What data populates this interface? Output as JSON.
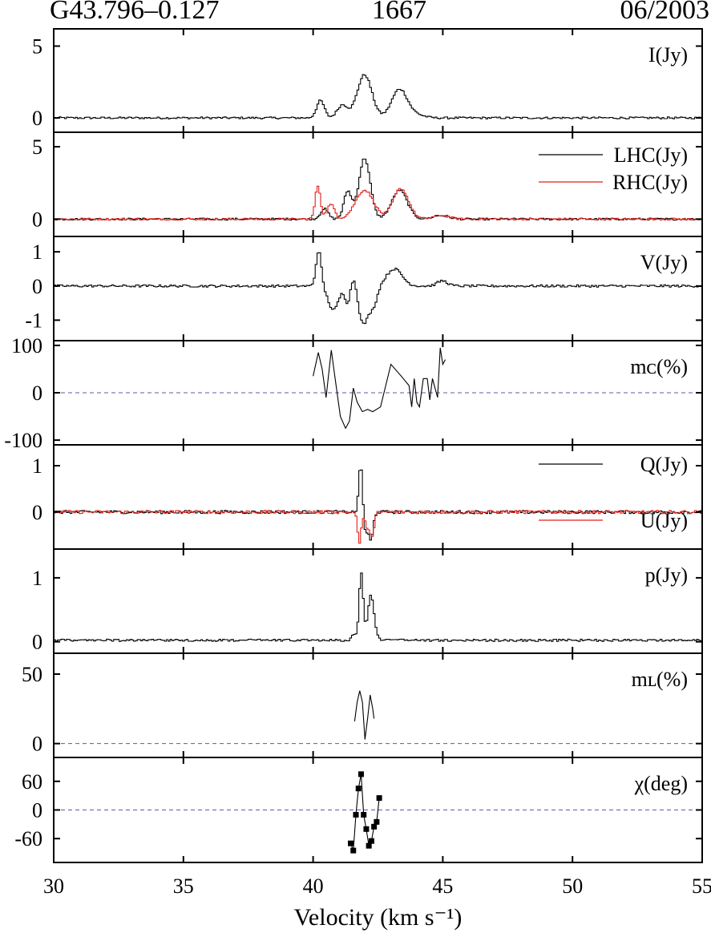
{
  "header": {
    "source": "G43.796–0.127",
    "frequency": "1667",
    "epoch": "06/2003"
  },
  "colors": {
    "black": "#000000",
    "red": "#e0201b",
    "zero_line": "#5a5aa8"
  },
  "chart_data": {
    "type": "line",
    "xlabel": "Velocity (km s⁻¹)",
    "xlim": [
      30,
      55
    ],
    "xticks": [
      30,
      35,
      40,
      45,
      50,
      55
    ],
    "panels": [
      {
        "id": "I",
        "label": "I(Jy)",
        "ylim": [
          -1,
          6.2
        ],
        "yticks": [
          {
            "v": 0,
            "t": "0"
          },
          {
            "v": 5,
            "t": "5"
          }
        ],
        "zero_line": false,
        "noise": 0.07,
        "series": [
          {
            "name": "I(Jy)",
            "color": "black",
            "step": true,
            "peaks": [
              [
                40.25,
                1.2,
                0.15
              ],
              [
                41.1,
                0.9,
                0.2
              ],
              [
                41.95,
                3.0,
                0.28
              ],
              [
                43.3,
                2.0,
                0.3
              ],
              [
                43.95,
                0.2,
                0.3
              ]
            ]
          }
        ]
      },
      {
        "id": "LR",
        "label": "",
        "ylim": [
          -1.2,
          6.0
        ],
        "yticks": [
          {
            "v": 0,
            "t": "0"
          },
          {
            "v": 5,
            "t": "5"
          }
        ],
        "zero_line": false,
        "noise": 0.07,
        "legend": [
          {
            "label": "LHC(Jy)",
            "color": "black"
          },
          {
            "label": "RHC(Jy)",
            "color": "red"
          }
        ],
        "series": [
          {
            "name": "LHC(Jy)",
            "color": "black",
            "step": true,
            "peaks": [
              [
                40.4,
                0.7,
                0.15
              ],
              [
                41.3,
                1.9,
                0.15
              ],
              [
                41.95,
                4.2,
                0.22
              ],
              [
                43.3,
                2.0,
                0.3
              ],
              [
                44.9,
                0.25,
                0.3
              ]
            ]
          },
          {
            "name": "RHC(Jy)",
            "color": "red",
            "step": true,
            "peaks": [
              [
                40.15,
                2.3,
                0.1
              ],
              [
                40.65,
                1.0,
                0.15
              ],
              [
                41.95,
                2.0,
                0.35
              ],
              [
                43.35,
                2.1,
                0.3
              ],
              [
                44.9,
                0.25,
                0.3
              ]
            ]
          }
        ]
      },
      {
        "id": "V",
        "label": "V(Jy)",
        "ylim": [
          -1.6,
          1.45
        ],
        "yticks": [
          {
            "v": 1,
            "t": "1"
          },
          {
            "v": 0,
            "t": "0"
          },
          {
            "v": -1,
            "t": "-1"
          }
        ],
        "zero_line": false,
        "noise": 0.035,
        "series": [
          {
            "name": "V(Jy)",
            "color": "black",
            "step": true,
            "peaks": [
              [
                40.18,
                1.05,
                0.1
              ],
              [
                40.75,
                -0.7,
                0.2
              ],
              [
                41.3,
                -0.5,
                0.1
              ],
              [
                41.55,
                0.4,
                0.12
              ],
              [
                41.9,
                -1.1,
                0.2
              ],
              [
                42.3,
                -0.5,
                0.15
              ],
              [
                43.1,
                0.5,
                0.3
              ],
              [
                44.95,
                0.15,
                0.2
              ]
            ]
          }
        ]
      },
      {
        "id": "mc",
        "label": "mᴄ(%)",
        "ylim": [
          -110,
          110
        ],
        "yticks": [
          {
            "v": 100,
            "t": "100"
          },
          {
            "v": 0,
            "t": "0"
          },
          {
            "v": -100,
            "t": "-100"
          }
        ],
        "zero_line": true,
        "series": [
          {
            "name": "m_C(%)",
            "color": "black",
            "step": false,
            "points": [
              [
                40.0,
                35
              ],
              [
                40.2,
                85
              ],
              [
                40.35,
                50
              ],
              [
                40.5,
                -10
              ],
              [
                40.7,
                90
              ],
              [
                40.85,
                30
              ],
              [
                41.05,
                -50
              ],
              [
                41.25,
                -75
              ],
              [
                41.4,
                -60
              ],
              [
                41.55,
                10
              ],
              [
                41.7,
                -20
              ],
              [
                41.9,
                -40
              ],
              [
                42.1,
                -35
              ],
              [
                42.3,
                -40
              ],
              [
                42.6,
                -30
              ],
              [
                43.0,
                60
              ],
              [
                43.4,
                35
              ],
              [
                43.7,
                15
              ],
              [
                43.8,
                -30
              ],
              [
                43.9,
                30
              ],
              [
                44.0,
                -20
              ],
              [
                44.1,
                -30
              ],
              [
                44.25,
                30
              ],
              [
                44.4,
                30
              ],
              [
                44.5,
                -15
              ],
              [
                44.6,
                30
              ],
              [
                44.8,
                -10
              ],
              [
                44.9,
                95
              ],
              [
                45.0,
                60
              ],
              [
                45.1,
                70
              ]
            ]
          }
        ]
      },
      {
        "id": "QU",
        "label": "",
        "ylim": [
          -0.8,
          1.45
        ],
        "yticks": [
          {
            "v": 1,
            "t": "1"
          },
          {
            "v": 0,
            "t": "0"
          }
        ],
        "zero_line": false,
        "noise": 0.035,
        "legend": [
          {
            "label": "Q(Jy)",
            "color": "black"
          },
          {
            "label": "U(Jy)",
            "color": "red"
          }
        ],
        "series": [
          {
            "name": "Q(Jy)",
            "color": "black",
            "step": true,
            "peaks": [
              [
                41.8,
                1.05,
                0.07
              ],
              [
                42.0,
                -0.45,
                0.08
              ],
              [
                42.2,
                -0.6,
                0.08
              ]
            ]
          },
          {
            "name": "U(Jy)",
            "color": "red",
            "step": true,
            "peaks": [
              [
                41.75,
                -0.65,
                0.07
              ],
              [
                42.05,
                -0.3,
                0.1
              ],
              [
                42.25,
                -0.5,
                0.08
              ]
            ]
          }
        ]
      },
      {
        "id": "p",
        "label": "p(Jy)",
        "ylim": [
          -0.18,
          1.45
        ],
        "yticks": [
          {
            "v": 1,
            "t": "1"
          },
          {
            "v": 0,
            "t": "0"
          }
        ],
        "zero_line": false,
        "noise": 0.04,
        "positive_noise": true,
        "series": [
          {
            "name": "p(Jy)",
            "color": "black",
            "step": true,
            "peaks": [
              [
                41.82,
                1.05,
                0.08
              ],
              [
                42.2,
                0.7,
                0.12
              ],
              [
                41.55,
                0.1,
                0.08
              ]
            ]
          }
        ]
      },
      {
        "id": "mL",
        "label": "mʟ(%)",
        "ylim": [
          -10,
          65
        ],
        "yticks": [
          {
            "v": 50,
            "t": "50"
          },
          {
            "v": 0,
            "t": "0"
          }
        ],
        "zero_line": true,
        "series": [
          {
            "name": "m_L(%)",
            "color": "black",
            "step": false,
            "points": [
              [
                41.6,
                16
              ],
              [
                41.7,
                30
              ],
              [
                41.8,
                38
              ],
              [
                41.9,
                30
              ],
              [
                42.0,
                3
              ],
              [
                42.1,
                18
              ],
              [
                42.2,
                35
              ],
              [
                42.3,
                25
              ],
              [
                42.35,
                18
              ]
            ]
          }
        ]
      },
      {
        "id": "chi",
        "label": "χ(deg)",
        "ylim": [
          -110,
          110
        ],
        "yticks": [
          {
            "v": 60,
            "t": "60"
          },
          {
            "v": 0,
            "t": "0"
          },
          {
            "v": -60,
            "t": "-60"
          }
        ],
        "zero_line": true,
        "series": [
          {
            "name": "chi(deg)",
            "color": "black",
            "step": false,
            "markers": true,
            "points": [
              [
                41.45,
                -70
              ],
              [
                41.55,
                -85
              ],
              [
                41.65,
                -10
              ],
              [
                41.75,
                45
              ],
              [
                41.85,
                75
              ],
              [
                41.95,
                -10
              ],
              [
                42.05,
                -40
              ],
              [
                42.15,
                -75
              ],
              [
                42.25,
                -65
              ],
              [
                42.35,
                -35
              ],
              [
                42.45,
                -25
              ],
              [
                42.55,
                25
              ]
            ]
          }
        ]
      }
    ]
  }
}
